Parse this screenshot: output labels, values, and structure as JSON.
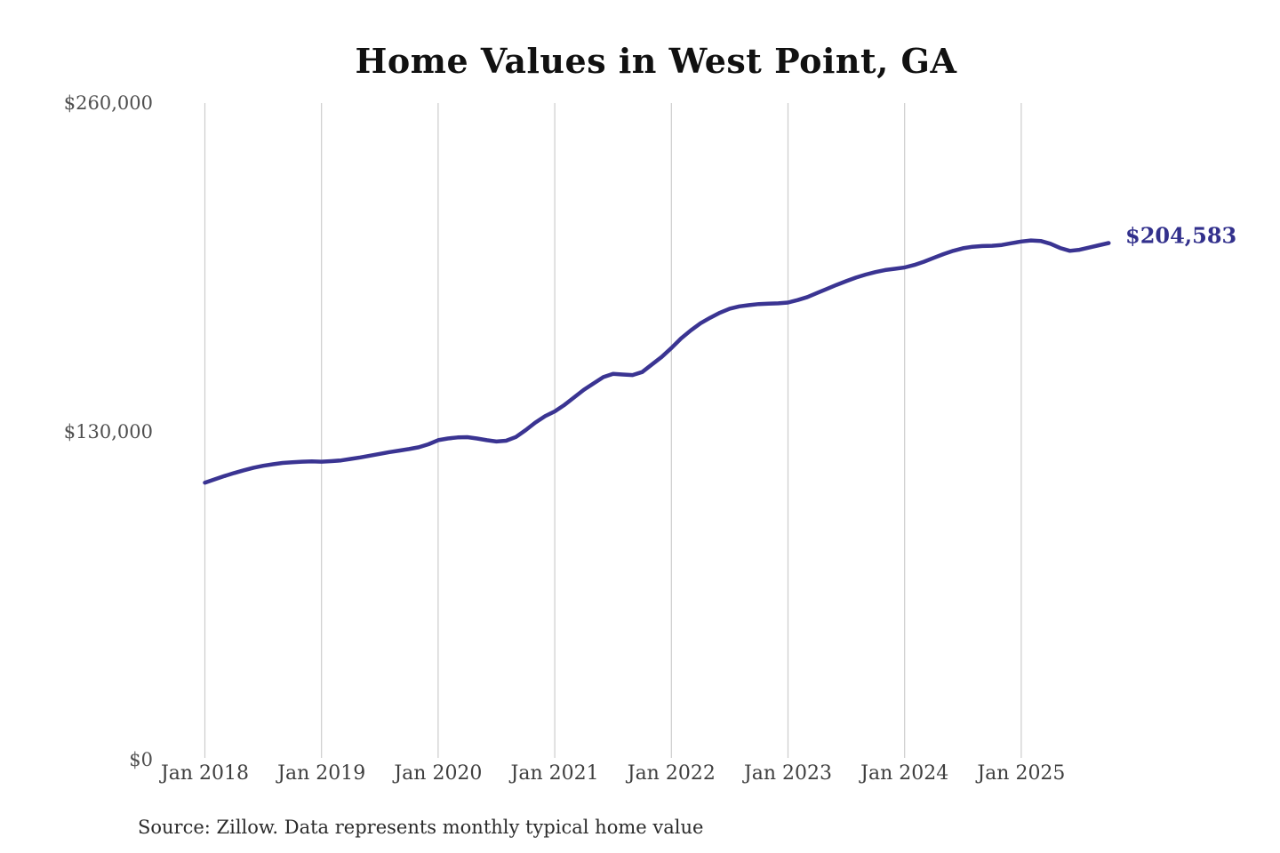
{
  "page": {
    "title": "Home Values in West Point, GA",
    "source_note": "Source: Zillow. Data represents monthly typical home value"
  },
  "chart_data": {
    "type": "line",
    "title": "Home Values in West Point, GA",
    "series_name": "Monthly typical home value",
    "x_start_month": "2018-01",
    "x_end_month": "2025-10",
    "values": [
      109700,
      111000,
      112300,
      113500,
      114600,
      115600,
      116400,
      117000,
      117500,
      117800,
      118000,
      118100,
      118000,
      118200,
      118500,
      119100,
      119700,
      120400,
      121100,
      121800,
      122400,
      123000,
      123700,
      124900,
      126500,
      127200,
      127600,
      127700,
      127200,
      126500,
      126000,
      126300,
      127800,
      130500,
      133500,
      136000,
      137900,
      140500,
      143500,
      146500,
      149000,
      151500,
      152800,
      152500,
      152300,
      153500,
      156500,
      159500,
      163000,
      166800,
      170000,
      172800,
      175000,
      177000,
      178600,
      179500,
      180000,
      180400,
      180600,
      180700,
      181000,
      182000,
      183200,
      184800,
      186400,
      188000,
      189500,
      190900,
      192100,
      193100,
      193900,
      194400,
      194900,
      195900,
      197200,
      198700,
      200200,
      201500,
      202500,
      203100,
      203400,
      203500,
      203800,
      204500,
      205200,
      205600,
      205400,
      204300,
      202600,
      201500,
      201900,
      202800,
      203700,
      204583
    ],
    "end_value": 204583,
    "end_label": "$204,583",
    "x_tick_labels": [
      "Jan 2018",
      "Jan 2019",
      "Jan 2020",
      "Jan 2021",
      "Jan 2022",
      "Jan 2023",
      "Jan 2024",
      "Jan 2025"
    ],
    "y_tick_labels": [
      "$0",
      "$130,000",
      "$260,000"
    ],
    "y_tick_values": [
      0,
      130000,
      260000
    ],
    "ylim": [
      0,
      260000
    ],
    "grid": "vertical-only",
    "legend": "none",
    "line_color": "#3a3492",
    "end_label_color": "#32308c",
    "grid_color": "#cccccc",
    "axis_text_color": "#4f4f4f"
  }
}
